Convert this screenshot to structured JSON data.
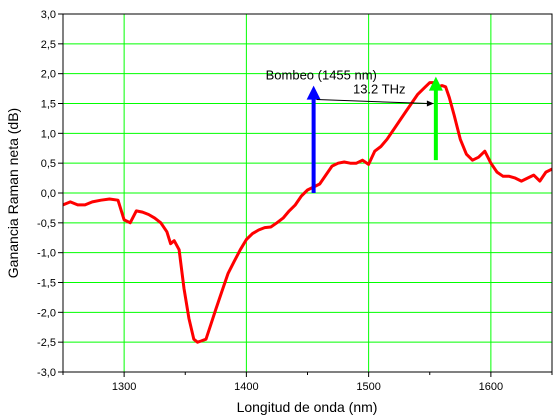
{
  "chart_data": {
    "type": "line",
    "title": "",
    "xlabel": "Longitud de onda (nm)",
    "ylabel": "Ganancia Raman neta (dB)",
    "xlim": [
      1250,
      1650
    ],
    "ylim": [
      -3.0,
      3.0
    ],
    "grid": true,
    "x_ticks": [
      1300,
      1400,
      1500,
      1600
    ],
    "x_tick_labels": [
      "1300",
      "1400",
      "1500",
      "1600"
    ],
    "y_ticks": [
      -3.0,
      -2.5,
      -2.0,
      -1.5,
      -1.0,
      -0.5,
      0.0,
      0.5,
      1.0,
      1.5,
      2.0,
      2.5,
      3.0
    ],
    "y_tick_labels": [
      "-3,0",
      "-2,5",
      "-2,0",
      "-1,5",
      "-1,0",
      "-0,5",
      "0,0",
      "0,5",
      "1,0",
      "1,5",
      "2,0",
      "2,5",
      "3,0"
    ],
    "colors": {
      "grid": "#00ff00",
      "series": "#ff0000",
      "pump_arrow": "#0000ff",
      "peak_arrow": "#00ff00",
      "axis": "#000000"
    },
    "series": [
      {
        "color": "#ff0000",
        "x": [
          1250,
          1256,
          1262,
          1268,
          1274,
          1281,
          1288,
          1295,
          1300,
          1305,
          1310,
          1315,
          1320,
          1325,
          1330,
          1335,
          1338,
          1341,
          1345,
          1349,
          1353,
          1357,
          1360,
          1363,
          1367,
          1371,
          1375,
          1380,
          1385,
          1390,
          1395,
          1400,
          1405,
          1410,
          1415,
          1420,
          1425,
          1430,
          1435,
          1440,
          1445,
          1450,
          1455,
          1460,
          1465,
          1470,
          1475,
          1480,
          1485,
          1490,
          1495,
          1500,
          1505,
          1510,
          1515,
          1520,
          1525,
          1530,
          1535,
          1540,
          1545,
          1550,
          1553,
          1557,
          1560,
          1563,
          1566,
          1570,
          1575,
          1580,
          1585,
          1590,
          1595,
          1600,
          1605,
          1610,
          1615,
          1620,
          1625,
          1630,
          1635,
          1640,
          1645,
          1650
        ],
        "y": [
          -0.2,
          -0.15,
          -0.2,
          -0.2,
          -0.15,
          -0.12,
          -0.1,
          -0.12,
          -0.45,
          -0.5,
          -0.3,
          -0.32,
          -0.36,
          -0.42,
          -0.5,
          -0.65,
          -0.85,
          -0.8,
          -0.95,
          -1.6,
          -2.1,
          -2.45,
          -2.5,
          -2.48,
          -2.45,
          -2.2,
          -1.95,
          -1.65,
          -1.35,
          -1.15,
          -0.95,
          -0.78,
          -0.68,
          -0.62,
          -0.58,
          -0.57,
          -0.5,
          -0.42,
          -0.3,
          -0.2,
          -0.05,
          0.05,
          0.1,
          0.15,
          0.3,
          0.45,
          0.5,
          0.52,
          0.5,
          0.5,
          0.55,
          0.48,
          0.7,
          0.78,
          0.9,
          1.05,
          1.2,
          1.35,
          1.5,
          1.65,
          1.75,
          1.85,
          1.85,
          1.78,
          1.8,
          1.78,
          1.6,
          1.3,
          0.9,
          0.65,
          0.55,
          0.6,
          0.7,
          0.5,
          0.35,
          0.28,
          0.28,
          0.25,
          0.2,
          0.25,
          0.3,
          0.2,
          0.35,
          0.4
        ]
      }
    ],
    "annotations": [
      {
        "text": "Bombeo (1455 nm)",
        "x": 1455,
        "y_from": 0.0,
        "y_to": 1.8,
        "color": "#0000ff"
      },
      {
        "text": "13.2 THz",
        "x_from": 1455,
        "x_to": 1555,
        "y": 1.5
      },
      {
        "x": 1555,
        "y_from": 0.55,
        "y_to": 1.95,
        "color": "#00ff00"
      }
    ]
  }
}
